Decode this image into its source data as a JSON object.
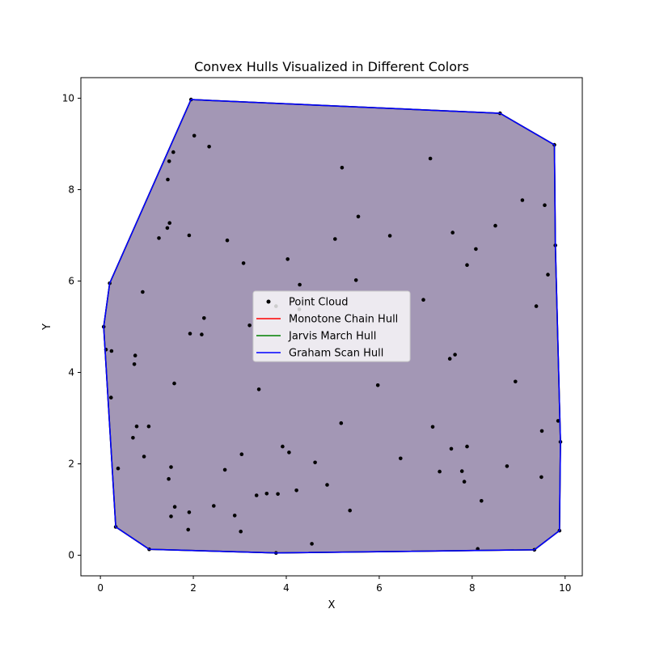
{
  "chart_data": {
    "type": "scatter",
    "title": "Convex Hulls Visualized in Different Colors",
    "xlabel": "X",
    "ylabel": "Y",
    "xlim": [
      -0.42,
      10.37
    ],
    "ylim": [
      -0.45,
      10.45
    ],
    "xticks": [
      0,
      2,
      4,
      6,
      8,
      10
    ],
    "yticks": [
      0,
      2,
      4,
      6,
      8,
      10
    ],
    "xtick_labels": [
      "0",
      "2",
      "4",
      "6",
      "8",
      "10"
    ],
    "ytick_labels": [
      "0",
      "2",
      "4",
      "6",
      "8",
      "10"
    ],
    "grid": false,
    "legend_position": "center",
    "fill_color": "#7b70a3",
    "series": [
      {
        "name": "Point Cloud",
        "kind": "points",
        "color": "#000000",
        "points": [
          [
            1.95,
            9.97
          ],
          [
            8.6,
            9.67
          ],
          [
            9.77,
            8.98
          ],
          [
            9.79,
            6.78
          ],
          [
            0.2,
            5.95
          ],
          [
            0.07,
            5.0
          ],
          [
            0.12,
            4.5
          ],
          [
            0.24,
            4.47
          ],
          [
            0.23,
            3.45
          ],
          [
            0.38,
            1.9
          ],
          [
            0.33,
            0.62
          ],
          [
            1.05,
            0.13
          ],
          [
            3.78,
            0.05
          ],
          [
            9.34,
            0.12
          ],
          [
            9.88,
            0.54
          ],
          [
            9.9,
            2.48
          ],
          [
            9.85,
            2.94
          ],
          [
            8.12,
            0.14
          ],
          [
            2.02,
            9.18
          ],
          [
            2.34,
            8.94
          ],
          [
            1.57,
            8.82
          ],
          [
            1.48,
            8.62
          ],
          [
            1.45,
            8.22
          ],
          [
            1.49,
            7.27
          ],
          [
            1.44,
            7.16
          ],
          [
            1.26,
            6.94
          ],
          [
            1.91,
            7.0
          ],
          [
            2.73,
            6.89
          ],
          [
            3.08,
            6.39
          ],
          [
            4.03,
            6.48
          ],
          [
            4.29,
            5.92
          ],
          [
            5.2,
            8.48
          ],
          [
            5.55,
            7.41
          ],
          [
            5.05,
            6.92
          ],
          [
            5.5,
            6.02
          ],
          [
            6.23,
            6.99
          ],
          [
            7.1,
            8.68
          ],
          [
            7.58,
            7.06
          ],
          [
            8.08,
            6.7
          ],
          [
            7.89,
            6.35
          ],
          [
            8.5,
            7.21
          ],
          [
            9.08,
            7.77
          ],
          [
            9.56,
            7.66
          ],
          [
            9.63,
            6.14
          ],
          [
            9.38,
            5.45
          ],
          [
            6.95,
            5.59
          ],
          [
            0.91,
            5.76
          ],
          [
            1.93,
            4.85
          ],
          [
            2.18,
            4.83
          ],
          [
            2.23,
            5.19
          ],
          [
            3.21,
            5.03
          ],
          [
            3.78,
            5.45
          ],
          [
            4.28,
            5.38
          ],
          [
            0.75,
            4.37
          ],
          [
            0.73,
            4.18
          ],
          [
            1.59,
            3.76
          ],
          [
            3.41,
            3.63
          ],
          [
            5.97,
            3.72
          ],
          [
            7.52,
            4.3
          ],
          [
            7.63,
            4.39
          ],
          [
            8.93,
            3.8
          ],
          [
            0.78,
            2.82
          ],
          [
            1.04,
            2.82
          ],
          [
            0.7,
            2.57
          ],
          [
            0.94,
            2.16
          ],
          [
            1.52,
            1.93
          ],
          [
            1.47,
            1.67
          ],
          [
            1.6,
            1.06
          ],
          [
            1.52,
            0.85
          ],
          [
            1.89,
            0.56
          ],
          [
            1.91,
            0.94
          ],
          [
            2.44,
            1.08
          ],
          [
            2.68,
            1.87
          ],
          [
            2.89,
            0.87
          ],
          [
            3.02,
            0.52
          ],
          [
            3.04,
            2.21
          ],
          [
            3.36,
            1.31
          ],
          [
            3.58,
            1.35
          ],
          [
            3.82,
            1.34
          ],
          [
            3.92,
            2.38
          ],
          [
            4.06,
            2.25
          ],
          [
            4.22,
            1.42
          ],
          [
            4.62,
            2.03
          ],
          [
            4.88,
            1.54
          ],
          [
            5.18,
            2.89
          ],
          [
            5.37,
            0.98
          ],
          [
            4.55,
            0.25
          ],
          [
            6.46,
            2.12
          ],
          [
            7.15,
            2.81
          ],
          [
            7.3,
            1.83
          ],
          [
            7.55,
            2.33
          ],
          [
            7.78,
            1.84
          ],
          [
            7.83,
            1.61
          ],
          [
            7.89,
            2.38
          ],
          [
            8.2,
            1.19
          ],
          [
            8.75,
            1.95
          ],
          [
            9.5,
            2.72
          ],
          [
            9.49,
            1.71
          ]
        ]
      },
      {
        "name": "Monotone Chain Hull",
        "kind": "hull",
        "color": "#ff0000",
        "points": [
          [
            1.95,
            9.97
          ],
          [
            8.6,
            9.67
          ],
          [
            9.77,
            8.98
          ],
          [
            9.79,
            6.78
          ],
          [
            9.9,
            2.48
          ],
          [
            9.88,
            0.54
          ],
          [
            9.34,
            0.12
          ],
          [
            3.78,
            0.05
          ],
          [
            1.05,
            0.13
          ],
          [
            0.33,
            0.62
          ],
          [
            0.07,
            5.0
          ],
          [
            0.2,
            5.95
          ]
        ]
      },
      {
        "name": "Jarvis March Hull",
        "kind": "hull",
        "color": "#008000",
        "points": [
          [
            1.95,
            9.97
          ],
          [
            8.6,
            9.67
          ],
          [
            9.77,
            8.98
          ],
          [
            9.79,
            6.78
          ],
          [
            9.9,
            2.48
          ],
          [
            9.88,
            0.54
          ],
          [
            9.34,
            0.12
          ],
          [
            3.78,
            0.05
          ],
          [
            1.05,
            0.13
          ],
          [
            0.33,
            0.62
          ],
          [
            0.07,
            5.0
          ],
          [
            0.2,
            5.95
          ]
        ]
      },
      {
        "name": "Graham Scan Hull",
        "kind": "hull",
        "color": "#0000ff",
        "points": [
          [
            1.95,
            9.97
          ],
          [
            8.6,
            9.67
          ],
          [
            9.77,
            8.98
          ],
          [
            9.79,
            6.78
          ],
          [
            9.9,
            2.48
          ],
          [
            9.88,
            0.54
          ],
          [
            9.34,
            0.12
          ],
          [
            3.78,
            0.05
          ],
          [
            1.05,
            0.13
          ],
          [
            0.33,
            0.62
          ],
          [
            0.07,
            5.0
          ],
          [
            0.2,
            5.95
          ]
        ]
      }
    ]
  }
}
